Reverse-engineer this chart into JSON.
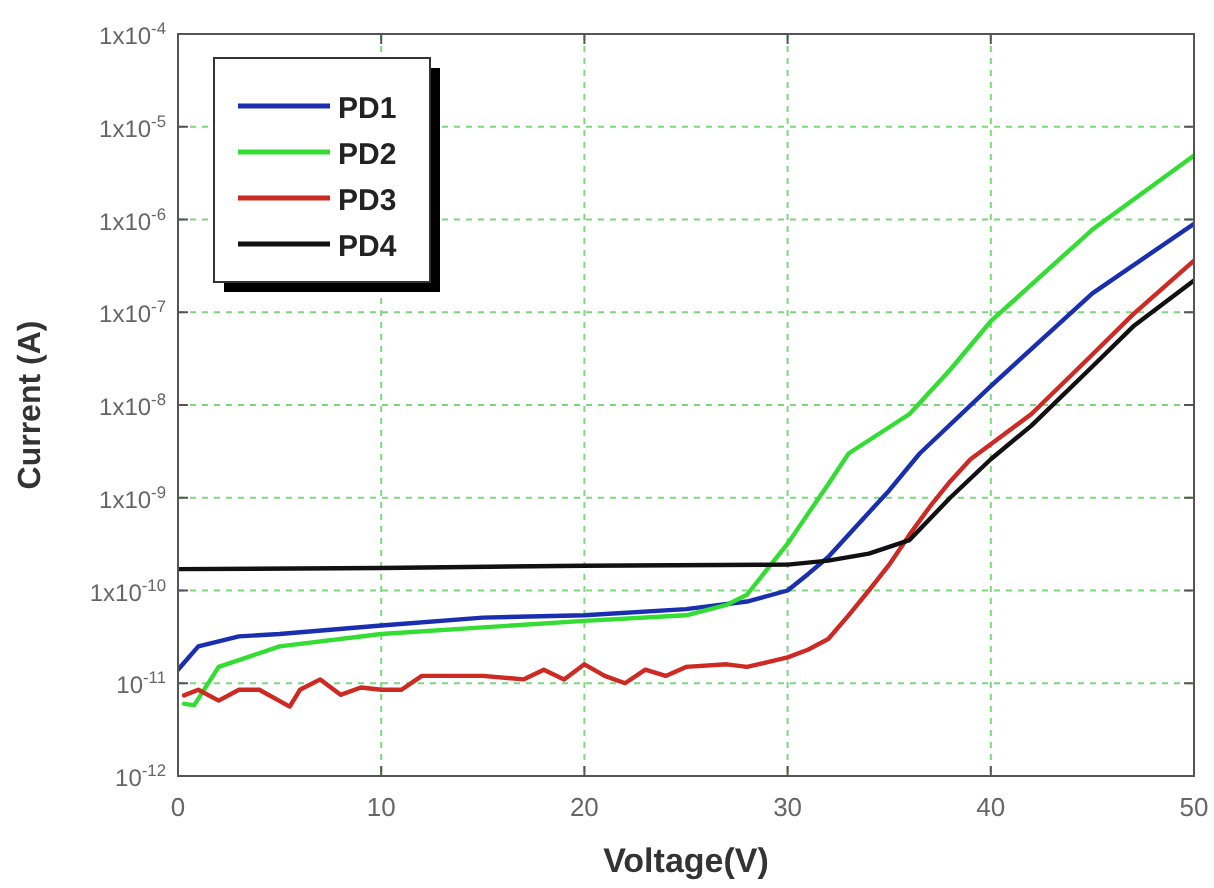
{
  "chart_data": {
    "type": "line",
    "xlabel": "Voltage(V)",
    "ylabel": "Current (A)",
    "xlim": [
      0,
      50
    ],
    "xticks": [
      0,
      10,
      20,
      30,
      40,
      50
    ],
    "ylim": [
      1e-12,
      0.0001
    ],
    "log": "y",
    "yticks": [
      {
        "value": 1e-12,
        "label": "10$^{-12}$"
      },
      {
        "value": 1e-11,
        "label": "10$^{-11}$"
      },
      {
        "value": 1e-10,
        "label": "1x10$^{-10}$"
      },
      {
        "value": 1e-09,
        "label": "1x10$^{-9}$"
      },
      {
        "value": 1e-08,
        "label": "1x10$^{-8}$"
      },
      {
        "value": 1e-07,
        "label": "1x10$^{-7}$"
      },
      {
        "value": 1e-06,
        "label": "1x10$^{-6}$"
      },
      {
        "value": 1e-05,
        "label": "1x10$^{-5}$"
      },
      {
        "value": 0.0001,
        "label": "1x10$^{-4}$"
      }
    ],
    "grid": true,
    "legend": "top left",
    "marker": "none",
    "line_style": "solid",
    "series": [
      {
        "name": "PD1",
        "color": "#1a2fb0",
        "x": [
          0,
          1,
          3,
          5,
          10,
          15,
          20,
          25,
          28,
          30,
          31,
          32,
          33,
          35,
          36.5,
          40,
          45,
          50
        ],
        "values": [
          1.4e-11,
          2.5e-11,
          3.2e-11,
          3.4e-11,
          4.2e-11,
          5.1e-11,
          5.4e-11,
          6.3e-11,
          7.6e-11,
          1e-10,
          1.5e-10,
          2.3e-10,
          4e-10,
          1.2e-09,
          3e-09,
          1.6e-08,
          1.6e-07,
          9e-07
        ]
      },
      {
        "name": "PD2",
        "color": "#33dd33",
        "x": [
          0.3,
          0.8,
          2,
          5,
          10,
          15,
          20,
          25,
          27,
          28,
          29,
          30,
          31,
          32,
          33,
          36,
          38,
          40,
          45,
          50
        ],
        "values": [
          6e-12,
          5.8e-12,
          1.5e-11,
          2.5e-11,
          3.4e-11,
          4e-11,
          4.7e-11,
          5.4e-11,
          7e-11,
          9e-11,
          1.7e-10,
          3.2e-10,
          6.7e-10,
          1.4e-09,
          3e-09,
          8e-09,
          2.4e-08,
          8e-08,
          7.8e-07,
          4.9e-06
        ]
      },
      {
        "name": "PD3",
        "color": "#cc2a22",
        "x": [
          0.3,
          1,
          2,
          3,
          4,
          5.5,
          6,
          7,
          8,
          9,
          10,
          11,
          12,
          15,
          17,
          18,
          19,
          20,
          21,
          22,
          23,
          24,
          25,
          27,
          28,
          30,
          31,
          32,
          33,
          34,
          35,
          36,
          37,
          38,
          39,
          42,
          45,
          47,
          50
        ],
        "values": [
          7.4e-12,
          8.5e-12,
          6.5e-12,
          8.5e-12,
          8.5e-12,
          5.6e-12,
          8.5e-12,
          1.1e-11,
          7.5e-12,
          9e-12,
          8.5e-12,
          8.5e-12,
          1.2e-11,
          1.2e-11,
          1.1e-11,
          1.4e-11,
          1.1e-11,
          1.6e-11,
          1.2e-11,
          1e-11,
          1.4e-11,
          1.2e-11,
          1.5e-11,
          1.6e-11,
          1.5e-11,
          1.9e-11,
          2.3e-11,
          3e-11,
          5.4e-11,
          1e-10,
          1.9e-10,
          4e-10,
          8e-10,
          1.5e-09,
          2.6e-09,
          8e-09,
          3.5e-08,
          9.5e-08,
          3.6e-07
        ]
      },
      {
        "name": "PD4",
        "color": "#111111",
        "x": [
          0,
          10,
          20,
          30,
          32,
          34,
          36,
          38,
          40,
          42,
          45,
          47,
          50
        ],
        "values": [
          1.7e-10,
          1.75e-10,
          1.85e-10,
          1.9e-10,
          2.1e-10,
          2.5e-10,
          3.5e-10,
          1e-09,
          2.6e-09,
          6e-09,
          2.6e-08,
          7e-08,
          2.2e-07
        ]
      }
    ]
  }
}
